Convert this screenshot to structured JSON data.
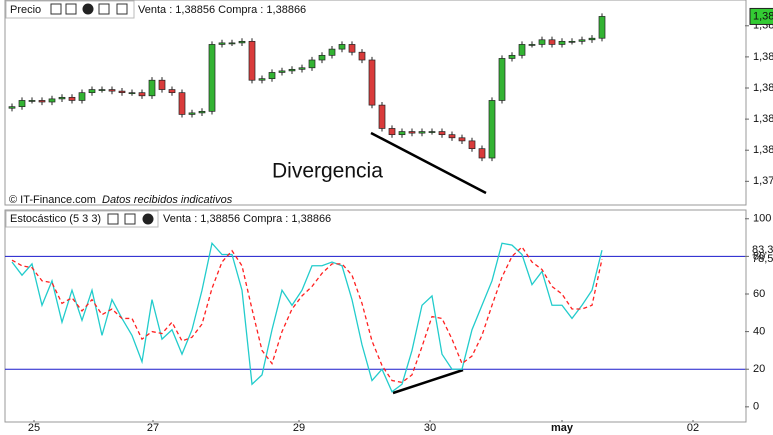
{
  "chart_data": [
    {
      "type": "candlestick",
      "title": "Precio",
      "quote": "Venta : 1,38856 Compra : 1,38866",
      "source": "© IT-Finance.com",
      "note": "Datos recibidos indicativos",
      "annotation": "Divergencia",
      "x": [
        0,
        1,
        2,
        3,
        4,
        5,
        6,
        7,
        8,
        9,
        10,
        11,
        12,
        13,
        14,
        15,
        16,
        17,
        18,
        19,
        20,
        21,
        22,
        23,
        24,
        25,
        26,
        27,
        28,
        29,
        30,
        31,
        32,
        33,
        34,
        35,
        36,
        37,
        38,
        39,
        40,
        41,
        42,
        43,
        44,
        45,
        46,
        47,
        48,
        49,
        50,
        51,
        52,
        53,
        54,
        55,
        56,
        57,
        58,
        59
      ],
      "open": [
        1.3827,
        1.3828,
        1.3832,
        1.3832,
        1.3831,
        1.3833,
        1.3834,
        1.3832,
        1.3837,
        1.3839,
        1.3839,
        1.3838,
        1.3837,
        1.3837,
        1.3835,
        1.3845,
        1.3839,
        1.3837,
        1.3823,
        1.3824,
        1.3825,
        1.3868,
        1.3869,
        1.3869,
        1.387,
        1.3845,
        1.3846,
        1.385,
        1.3851,
        1.3852,
        1.3853,
        1.3858,
        1.3861,
        1.3865,
        1.3868,
        1.3863,
        1.3858,
        1.3829,
        1.3814,
        1.381,
        1.3812,
        1.3811,
        1.3812,
        1.3812,
        1.381,
        1.3808,
        1.3806,
        1.3801,
        1.3795,
        1.3832,
        1.3859,
        1.3861,
        1.3868,
        1.3868,
        1.3871,
        1.3868,
        1.387,
        1.387,
        1.3871,
        1.3872
      ],
      "high": [
        1.383,
        1.3834,
        1.3834,
        1.3834,
        1.3835,
        1.3836,
        1.3836,
        1.3839,
        1.3841,
        1.3841,
        1.3841,
        1.384,
        1.3839,
        1.3839,
        1.3847,
        1.3847,
        1.3841,
        1.3839,
        1.3826,
        1.3827,
        1.387,
        1.3871,
        1.3871,
        1.3872,
        1.3872,
        1.3848,
        1.3852,
        1.3853,
        1.3854,
        1.3855,
        1.386,
        1.3863,
        1.3867,
        1.387,
        1.387,
        1.3865,
        1.386,
        1.3831,
        1.3816,
        1.3814,
        1.3814,
        1.3814,
        1.3814,
        1.3814,
        1.3812,
        1.381,
        1.3808,
        1.3803,
        1.3834,
        1.3861,
        1.3863,
        1.387,
        1.387,
        1.3873,
        1.3873,
        1.3872,
        1.3872,
        1.3873,
        1.3874,
        1.3888
      ],
      "low": [
        1.3825,
        1.3826,
        1.383,
        1.3829,
        1.3829,
        1.3831,
        1.383,
        1.383,
        1.3835,
        1.3837,
        1.3836,
        1.3835,
        1.3835,
        1.3833,
        1.3833,
        1.3837,
        1.3835,
        1.3821,
        1.3821,
        1.3822,
        1.3823,
        1.3866,
        1.3867,
        1.3867,
        1.3843,
        1.3843,
        1.3844,
        1.3848,
        1.3849,
        1.385,
        1.3851,
        1.3856,
        1.3859,
        1.3863,
        1.3861,
        1.3856,
        1.3827,
        1.3812,
        1.3808,
        1.3808,
        1.3809,
        1.3809,
        1.381,
        1.3808,
        1.3806,
        1.3804,
        1.3799,
        1.3793,
        1.3793,
        1.383,
        1.3857,
        1.3859,
        1.3866,
        1.3866,
        1.3866,
        1.3866,
        1.3868,
        1.3868,
        1.3869,
        1.387
      ],
      "close": [
        1.3828,
        1.3832,
        1.3832,
        1.3831,
        1.3833,
        1.3834,
        1.3832,
        1.3837,
        1.3839,
        1.3839,
        1.3838,
        1.3837,
        1.3837,
        1.3835,
        1.3845,
        1.3839,
        1.3837,
        1.3823,
        1.3824,
        1.3825,
        1.3868,
        1.3869,
        1.3869,
        1.387,
        1.3845,
        1.3846,
        1.385,
        1.3851,
        1.3852,
        1.3853,
        1.3858,
        1.3861,
        1.3865,
        1.3868,
        1.3863,
        1.3858,
        1.3829,
        1.3814,
        1.381,
        1.3812,
        1.3811,
        1.3812,
        1.3812,
        1.381,
        1.3808,
        1.3806,
        1.3801,
        1.3795,
        1.3832,
        1.3859,
        1.3861,
        1.3868,
        1.3868,
        1.3871,
        1.3868,
        1.387,
        1.387,
        1.3871,
        1.3872,
        1.3886
      ],
      "up_color": "#33b333",
      "down_color": "#d93b3b",
      "current_label": "1,38",
      "current_color": "#33cc33",
      "xlim": [
        -0.7,
        73.3
      ],
      "ylim": [
        1.3768,
        1.3894
      ],
      "yticks": [
        {
          "value": 1.388,
          "label": "1,38"
        },
        {
          "value": 1.386,
          "label": "1,38"
        },
        {
          "value": 1.384,
          "label": "1,38"
        },
        {
          "value": 1.382,
          "label": "1,38"
        },
        {
          "value": 1.38,
          "label": "1,38"
        },
        {
          "value": 1.378,
          "label": "1,37"
        }
      ]
    },
    {
      "type": "line",
      "title": "Estocástico (5 3 3)",
      "quote": "Venta : 1,38856 Compra : 1,38866",
      "x": [
        0,
        1,
        2,
        3,
        4,
        5,
        6,
        7,
        8,
        9,
        10,
        11,
        12,
        13,
        14,
        15,
        16,
        17,
        18,
        19,
        20,
        21,
        22,
        23,
        24,
        25,
        26,
        27,
        28,
        29,
        30,
        31,
        32,
        33,
        34,
        35,
        36,
        37,
        38,
        39,
        40,
        41,
        42,
        43,
        44,
        45,
        46,
        47,
        48,
        49,
        50,
        51,
        52,
        53,
        54,
        55,
        56,
        57,
        58,
        59
      ],
      "series": [
        {
          "color": "#22cccc",
          "current_label": "83,3",
          "values": [
            77,
            70,
            76,
            54,
            67,
            45,
            62,
            46,
            62,
            38,
            57,
            47,
            38,
            24,
            57,
            36,
            41,
            28,
            41,
            62,
            87,
            81,
            81,
            62,
            12,
            17,
            41,
            62,
            54,
            62,
            75,
            75,
            77,
            75,
            57,
            33,
            14,
            20,
            8,
            12,
            30,
            54,
            59,
            28,
            20,
            20,
            41,
            54,
            67,
            87,
            86,
            81,
            65,
            72,
            54,
            54,
            47,
            54,
            62,
            83.3
          ]
        },
        {
          "color": "#ff2020",
          "dashed": true,
          "current_label": "78,5",
          "values": [
            78,
            75,
            74,
            67,
            66,
            55,
            58,
            51,
            57,
            49,
            52,
            47,
            47,
            36,
            40,
            39,
            45,
            35,
            37,
            44,
            63,
            77,
            83,
            75,
            52,
            30,
            23,
            40,
            52,
            59,
            64,
            71,
            76,
            76,
            70,
            55,
            35,
            22,
            14,
            13,
            17,
            32,
            48,
            47,
            36,
            23,
            27,
            38,
            54,
            69,
            80,
            85,
            77,
            73,
            64,
            60,
            52,
            52,
            54,
            78.5
          ]
        }
      ],
      "levels": [
        20,
        80
      ],
      "level_color": "#1a1acc",
      "xlim": [
        -0.7,
        73.3
      ],
      "ylim": [
        -7,
        102
      ],
      "yticks": [
        0,
        20,
        40,
        60,
        80,
        100
      ],
      "xticks": [
        {
          "value": 2.2,
          "label": "25"
        },
        {
          "value": 14.1,
          "label": "27"
        },
        {
          "value": 28.7,
          "label": "29"
        },
        {
          "value": 41.8,
          "label": "30"
        },
        {
          "value": 55,
          "label": "may"
        },
        {
          "value": 68.1,
          "label": "02"
        }
      ]
    }
  ]
}
